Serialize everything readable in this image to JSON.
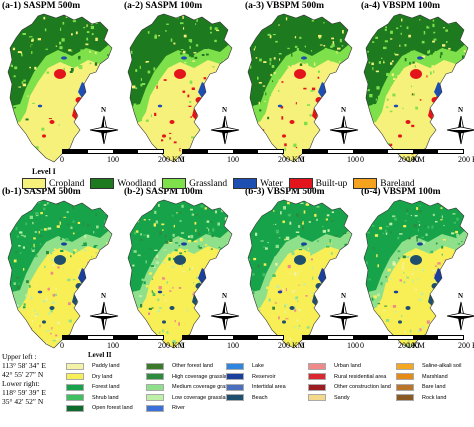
{
  "panels": [
    {
      "id": "a1",
      "title": "(a-1) SASPM 500m",
      "row": 0
    },
    {
      "id": "a2",
      "title": "(a-2) SASPM 100m",
      "row": 0
    },
    {
      "id": "a3",
      "title": "(a-3) VBSPM 500m",
      "row": 0
    },
    {
      "id": "a4",
      "title": "(a-4) VBSPM 100m",
      "row": 0
    },
    {
      "id": "b1",
      "title": "(b-1) SASPM 500m",
      "row": 1
    },
    {
      "id": "b2",
      "title": "(b-2) SASPM 100m",
      "row": 1
    },
    {
      "id": "b3",
      "title": "(b-3) VBSPM 500m",
      "row": 1
    },
    {
      "id": "b4",
      "title": "(b-4) VBSPM 100m",
      "row": 1
    }
  ],
  "scalebar": {
    "ticks": [
      "0",
      "100",
      "200"
    ],
    "unit": "KM"
  },
  "north_arrow": {
    "letter": "N"
  },
  "level1": {
    "title": "Level I",
    "classes": [
      {
        "label": "Cropland",
        "color": "#f6f17a"
      },
      {
        "label": "Woodland",
        "color": "#1e7a1e"
      },
      {
        "label": "Grassland",
        "color": "#7ee04a"
      },
      {
        "label": "Water",
        "color": "#1d4fb3"
      },
      {
        "label": "Built-up",
        "color": "#e3141c"
      },
      {
        "label": "Bareland",
        "color": "#f5a21f"
      }
    ]
  },
  "coordinates": {
    "upper_left_label": "Upper left :",
    "upper_left_lon": "113° 58′ 34″ E",
    "upper_left_lat": "42° 55′ 27″ N",
    "lower_right_label": "Lower right:",
    "lower_right_lon": "118° 59′ 39″ E",
    "lower_right_lat": "35° 42′ 52″ N"
  },
  "level2": {
    "title": "Level II",
    "columns": [
      [
        {
          "label": "Paddy land",
          "color": "#f3f3a8"
        },
        {
          "label": "Dry land",
          "color": "#f7ef55"
        },
        {
          "label": "Forest land",
          "color": "#16a34a"
        },
        {
          "label": "Shrub land",
          "color": "#3fbf5f"
        },
        {
          "label": "Open forest land",
          "color": "#0d6b2b"
        }
      ],
      [
        {
          "label": "Other forest land",
          "color": "#3a7a2a"
        },
        {
          "label": "High coverage grassland",
          "color": "#2e8b3e"
        },
        {
          "label": "Medium coverage grassland",
          "color": "#8fe08a"
        },
        {
          "label": "Low coverage grassland",
          "color": "#bff0a8"
        },
        {
          "label": "River",
          "color": "#3b6fd9"
        }
      ],
      [
        {
          "label": "Lake",
          "color": "#2f86e0"
        },
        {
          "label": "Reservoir",
          "color": "#1b3f9c"
        },
        {
          "label": "Intertidal area",
          "color": "#4a6fbe"
        },
        {
          "label": "Beach",
          "color": "#1f4f6e"
        }
      ],
      [
        {
          "label": "Urban land",
          "color": "#f08a8a"
        },
        {
          "label": "Rural residential area",
          "color": "#d9282f"
        },
        {
          "label": "Other construction land",
          "color": "#9c1c22"
        },
        {
          "label": "Sandy",
          "color": "#f5d98a"
        }
      ],
      [
        {
          "label": "Saline-alkali soil",
          "color": "#f5a623"
        },
        {
          "label": "Marshland",
          "color": "#e58a14"
        },
        {
          "label": "Bare land",
          "color": "#b9762a"
        },
        {
          "label": "Rock land",
          "color": "#8a5a22"
        }
      ]
    ]
  }
}
